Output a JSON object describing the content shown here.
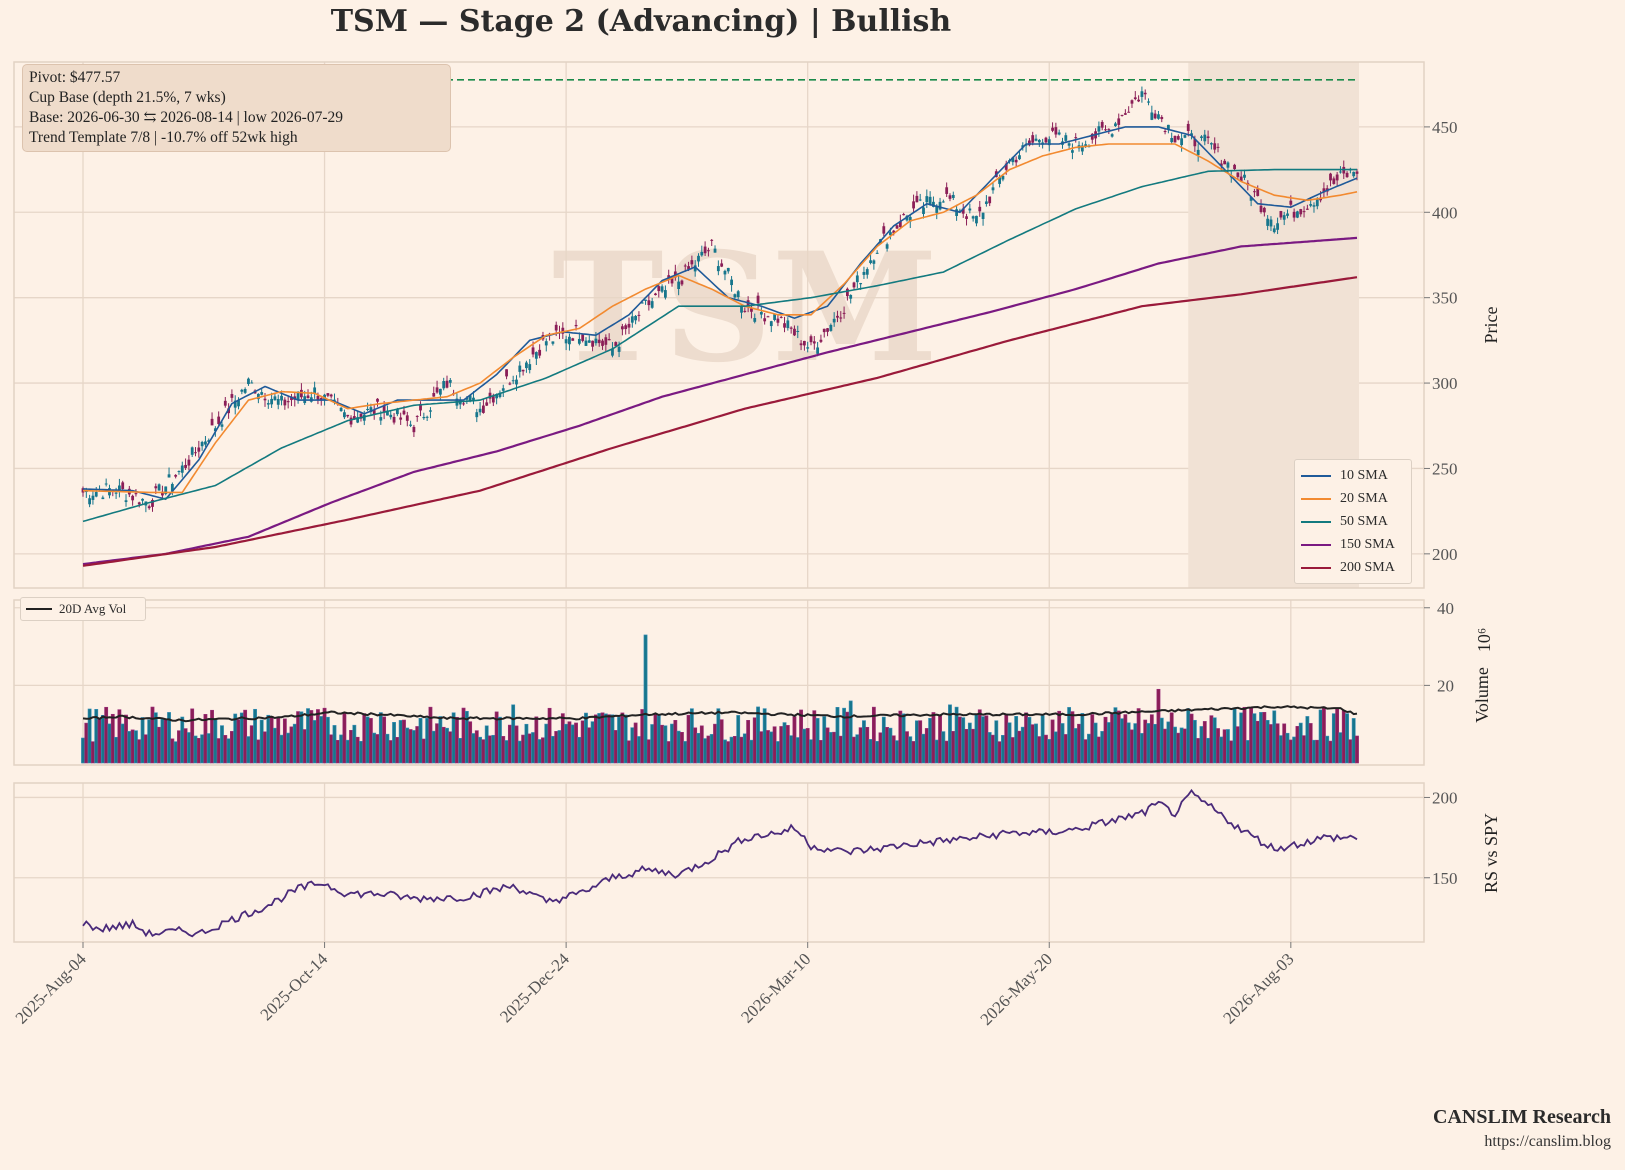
{
  "title": "TSM  —  Stage 2 (Advancing)  |  Bullish",
  "watermark": "TSM",
  "info_box": {
    "lines": [
      "Pivot: $477.57",
      "Cup Base  (depth 21.5%, 7 wks)",
      "Base: 2026-06-30 ⇆ 2026-08-14  |  low 2026-07-29",
      "Trend Template 7/8  |  -10.7% off 52wk high"
    ]
  },
  "legend": {
    "items": [
      {
        "label": "10 SMA",
        "color": "#1f5a99"
      },
      {
        "label": "20 SMA",
        "color": "#f28a30"
      },
      {
        "label": "50 SMA",
        "color": "#137a7f"
      },
      {
        "label": "150 SMA",
        "color": "#7a1a82"
      },
      {
        "label": "200 SMA",
        "color": "#9a1a3a"
      }
    ]
  },
  "volume_legend": {
    "label": "20D Avg Vol",
    "color": "#222222"
  },
  "brand": {
    "name": "CANSLIM Research",
    "url": "https://canslim.blog"
  },
  "colors": {
    "up": "#17768c",
    "down": "#8b1e57",
    "pivot": "#1a8a4a",
    "rs": "#4a2a7a",
    "grid": "#e6d6c8",
    "base_shade": "#f1e2d5"
  },
  "chart_data": {
    "type": "candlestick-with-volume-and-rs",
    "x_tick_labels": [
      "2025-Aug-04",
      "2025-Oct-14",
      "2025-Dec-24",
      "2026-Mar-10",
      "2026-May-20",
      "2026-Aug-03"
    ],
    "price_panel": {
      "ylabel": "Price",
      "yticks": [
        200,
        250,
        300,
        350,
        400,
        450
      ],
      "ylim": [
        180,
        488
      ],
      "pivot": 477.57,
      "base_range": [
        "2026-06-30",
        "2026-08-14"
      ],
      "close_anchors": [
        [
          0,
          236
        ],
        [
          10,
          238
        ],
        [
          20,
          230
        ],
        [
          30,
          250
        ],
        [
          40,
          275
        ],
        [
          50,
          300
        ],
        [
          60,
          288
        ],
        [
          70,
          295
        ],
        [
          80,
          280
        ],
        [
          90,
          285
        ],
        [
          100,
          275
        ],
        [
          110,
          300
        ],
        [
          120,
          285
        ],
        [
          130,
          305
        ],
        [
          140,
          325
        ],
        [
          150,
          330
        ],
        [
          160,
          320
        ],
        [
          170,
          345
        ],
        [
          180,
          360
        ],
        [
          190,
          380
        ],
        [
          200,
          345
        ],
        [
          210,
          338
        ],
        [
          220,
          320
        ],
        [
          230,
          345
        ],
        [
          240,
          380
        ],
        [
          250,
          400
        ],
        [
          260,
          410
        ],
        [
          270,
          395
        ],
        [
          280,
          430
        ],
        [
          290,
          445
        ],
        [
          300,
          440
        ],
        [
          310,
          448
        ],
        [
          320,
          470
        ],
        [
          330,
          445
        ],
        [
          340,
          440
        ],
        [
          350,
          420
        ],
        [
          360,
          395
        ],
        [
          370,
          405
        ],
        [
          380,
          420
        ],
        [
          385,
          425
        ]
      ],
      "series": [
        {
          "name": "10 SMA",
          "color": "#1f5a99",
          "values": [
            [
              0,
              238
            ],
            [
              15,
              237
            ],
            [
              25,
              232
            ],
            [
              35,
              255
            ],
            [
              45,
              288
            ],
            [
              55,
              298
            ],
            [
              65,
              290
            ],
            [
              75,
              290
            ],
            [
              85,
              282
            ],
            [
              95,
              290
            ],
            [
              105,
              290
            ],
            [
              115,
              290
            ],
            [
              125,
              305
            ],
            [
              135,
              325
            ],
            [
              145,
              330
            ],
            [
              155,
              328
            ],
            [
              165,
              340
            ],
            [
              175,
              360
            ],
            [
              185,
              368
            ],
            [
              195,
              350
            ],
            [
              205,
              345
            ],
            [
              215,
              338
            ],
            [
              225,
              345
            ],
            [
              235,
              370
            ],
            [
              245,
              392
            ],
            [
              255,
              405
            ],
            [
              265,
              400
            ],
            [
              275,
              420
            ],
            [
              285,
              440
            ],
            [
              295,
              440
            ],
            [
              305,
              445
            ],
            [
              315,
              450
            ],
            [
              325,
              450
            ],
            [
              335,
              445
            ],
            [
              345,
              425
            ],
            [
              355,
              405
            ],
            [
              365,
              403
            ],
            [
              375,
              412
            ],
            [
              385,
              420
            ]
          ]
        },
        {
          "name": "20 SMA",
          "color": "#f28a30",
          "values": [
            [
              0,
              237
            ],
            [
              20,
              236
            ],
            [
              30,
              236
            ],
            [
              40,
              265
            ],
            [
              50,
              290
            ],
            [
              60,
              295
            ],
            [
              70,
              294
            ],
            [
              80,
              285
            ],
            [
              90,
              288
            ],
            [
              100,
              290
            ],
            [
              110,
              292
            ],
            [
              120,
              300
            ],
            [
              130,
              315
            ],
            [
              140,
              328
            ],
            [
              150,
              332
            ],
            [
              160,
              345
            ],
            [
              170,
              355
            ],
            [
              180,
              363
            ],
            [
              190,
              355
            ],
            [
              200,
              345
            ],
            [
              210,
              340
            ],
            [
              220,
              340
            ],
            [
              230,
              358
            ],
            [
              240,
              380
            ],
            [
              250,
              395
            ],
            [
              260,
              400
            ],
            [
              270,
              410
            ],
            [
              280,
              425
            ],
            [
              290,
              433
            ],
            [
              300,
              438
            ],
            [
              310,
              440
            ],
            [
              320,
              440
            ],
            [
              330,
              440
            ],
            [
              340,
              430
            ],
            [
              350,
              418
            ],
            [
              360,
              410
            ],
            [
              370,
              407
            ],
            [
              380,
              410
            ],
            [
              385,
              412
            ]
          ]
        },
        {
          "name": "50 SMA",
          "color": "#137a7f",
          "values": [
            [
              0,
              219
            ],
            [
              20,
              230
            ],
            [
              40,
              240
            ],
            [
              60,
              262
            ],
            [
              80,
              278
            ],
            [
              100,
              287
            ],
            [
              120,
              290
            ],
            [
              140,
              303
            ],
            [
              160,
              320
            ],
            [
              180,
              345
            ],
            [
              200,
              345
            ],
            [
              220,
              350
            ],
            [
              240,
              357
            ],
            [
              260,
              365
            ],
            [
              280,
              384
            ],
            [
              300,
              402
            ],
            [
              320,
              415
            ],
            [
              340,
              424
            ],
            [
              360,
              425
            ],
            [
              385,
              425
            ]
          ]
        },
        {
          "name": "150 SMA",
          "color": "#7a1a82",
          "values": [
            [
              0,
              194
            ],
            [
              25,
              200
            ],
            [
              50,
              210
            ],
            [
              75,
              230
            ],
            [
              100,
              248
            ],
            [
              125,
              260
            ],
            [
              150,
              275
            ],
            [
              175,
              292
            ],
            [
              200,
              305
            ],
            [
              225,
              318
            ],
            [
              250,
              330
            ],
            [
              275,
              342
            ],
            [
              300,
              355
            ],
            [
              325,
              370
            ],
            [
              350,
              380
            ],
            [
              385,
              385
            ]
          ]
        },
        {
          "name": "200 SMA",
          "color": "#9a1a3a",
          "values": [
            [
              0,
              193
            ],
            [
              40,
              204
            ],
            [
              80,
              220
            ],
            [
              120,
              237
            ],
            [
              160,
              262
            ],
            [
              200,
              285
            ],
            [
              240,
              303
            ],
            [
              280,
              325
            ],
            [
              320,
              345
            ],
            [
              350,
              352
            ],
            [
              385,
              362
            ]
          ]
        }
      ]
    },
    "volume_panel": {
      "ylabel": "Volume",
      "unit": "10⁶",
      "yticks": [
        20,
        40
      ],
      "ylim": [
        0,
        42
      ],
      "base_level": 10,
      "spikes": [
        [
          72,
          12
        ],
        [
          90,
          13
        ],
        [
          123,
          7
        ],
        [
          130,
          15
        ],
        [
          170,
          33
        ],
        [
          179,
          11
        ],
        [
          232,
          16
        ],
        [
          262,
          15
        ],
        [
          301,
          10
        ],
        [
          325,
          19
        ],
        [
          358,
          11
        ],
        [
          370,
          12
        ]
      ],
      "avg_anchors": [
        [
          0,
          11.3
        ],
        [
          10,
          12
        ],
        [
          30,
          11
        ],
        [
          60,
          11.8
        ],
        [
          75,
          13
        ],
        [
          90,
          12.5
        ],
        [
          110,
          11.5
        ],
        [
          150,
          11.5
        ],
        [
          170,
          12.5
        ],
        [
          195,
          13
        ],
        [
          230,
          12
        ],
        [
          260,
          12.5
        ],
        [
          300,
          12.5
        ],
        [
          330,
          13.5
        ],
        [
          360,
          14.5
        ],
        [
          380,
          14
        ],
        [
          385,
          12.5
        ]
      ]
    },
    "rs_panel": {
      "ylabel": "RS vs SPY",
      "yticks": [
        150,
        200
      ],
      "ylim": [
        110,
        209
      ],
      "anchors": [
        [
          0,
          122
        ],
        [
          5,
          118
        ],
        [
          15,
          121
        ],
        [
          20,
          115
        ],
        [
          30,
          117
        ],
        [
          35,
          115
        ],
        [
          45,
          124
        ],
        [
          55,
          132
        ],
        [
          65,
          143
        ],
        [
          72,
          147
        ],
        [
          80,
          140
        ],
        [
          90,
          140
        ],
        [
          100,
          137
        ],
        [
          115,
          138
        ],
        [
          130,
          145
        ],
        [
          140,
          135
        ],
        [
          150,
          140
        ],
        [
          160,
          150
        ],
        [
          170,
          155
        ],
        [
          180,
          152
        ],
        [
          190,
          162
        ],
        [
          200,
          175
        ],
        [
          210,
          178
        ],
        [
          215,
          181
        ],
        [
          220,
          170
        ],
        [
          230,
          166
        ],
        [
          240,
          168
        ],
        [
          250,
          171
        ],
        [
          260,
          173
        ],
        [
          270,
          175
        ],
        [
          280,
          178
        ],
        [
          290,
          178
        ],
        [
          300,
          180
        ],
        [
          310,
          185
        ],
        [
          320,
          190
        ],
        [
          325,
          196
        ],
        [
          330,
          190
        ],
        [
          335,
          202
        ],
        [
          340,
          195
        ],
        [
          350,
          180
        ],
        [
          360,
          168
        ],
        [
          365,
          170
        ],
        [
          375,
          175
        ],
        [
          385,
          175
        ]
      ]
    }
  }
}
